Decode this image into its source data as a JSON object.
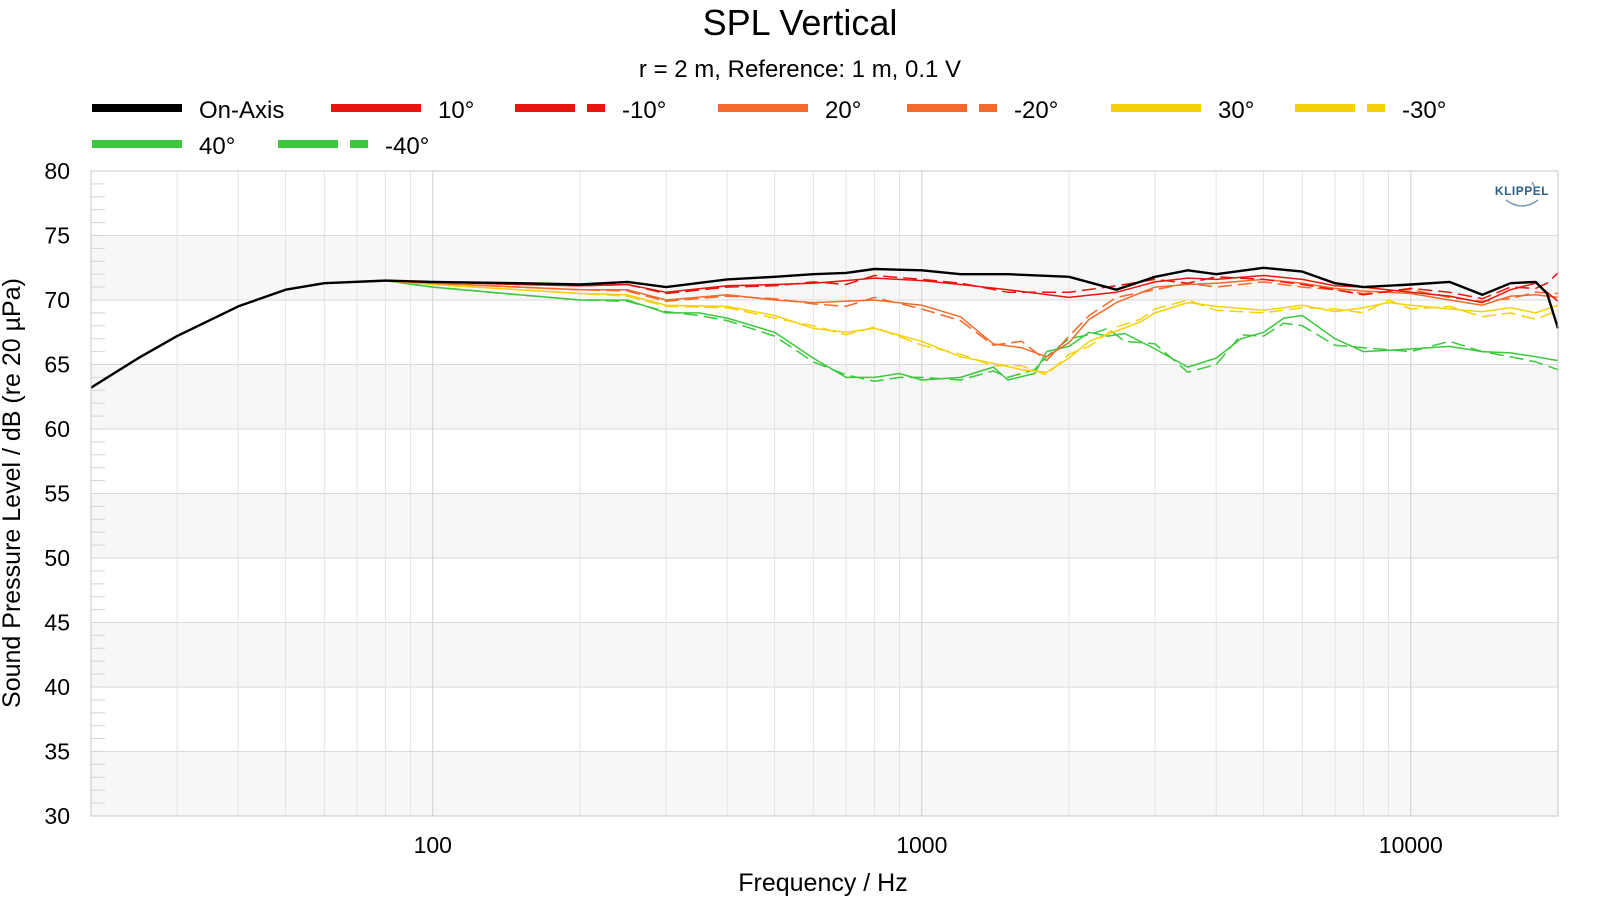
{
  "chart_data": {
    "type": "line",
    "title": "SPL Vertical",
    "subtitle": "r = 2 m,  Reference: 1 m, 0.1 V",
    "xlabel": "Frequency / Hz",
    "ylabel": "Sound Pressure Level / dB (re 20 µPa)",
    "xscale": "log",
    "xlim": [
      20,
      20000
    ],
    "xticks": [
      100,
      1000,
      10000
    ],
    "xtick_labels": [
      "100",
      "1000",
      "10000"
    ],
    "ylim": [
      30,
      80
    ],
    "yticks": [
      30,
      35,
      40,
      45,
      50,
      55,
      60,
      65,
      70,
      75,
      80
    ],
    "ytick_labels": [
      "30",
      "35",
      "40",
      "45",
      "50",
      "55",
      "60",
      "65",
      "70",
      "75",
      "80"
    ],
    "grid": true,
    "legend_position": "top",
    "logo": "KLIPPEL",
    "series": [
      {
        "name": "On-Axis",
        "color": "#000000",
        "dash": "solid",
        "x": [
          20,
          25,
          30,
          40,
          50,
          60,
          80,
          100,
          150,
          200,
          250,
          300,
          400,
          500,
          600,
          700,
          800,
          1000,
          1200,
          1500,
          2000,
          2500,
          3000,
          3500,
          4000,
          5000,
          6000,
          7000,
          8000,
          10000,
          12000,
          14000,
          16000,
          18000,
          19000,
          20000
        ],
        "y": [
          63.2,
          65.5,
          67.2,
          69.5,
          70.8,
          71.3,
          71.5,
          71.4,
          71.3,
          71.2,
          71.4,
          71.0,
          71.6,
          71.8,
          72.0,
          72.1,
          72.4,
          72.3,
          72.0,
          72.0,
          71.8,
          70.8,
          71.8,
          72.3,
          72.0,
          72.5,
          72.2,
          71.3,
          71.0,
          71.2,
          71.4,
          70.4,
          71.3,
          71.4,
          70.5,
          67.8
        ]
      },
      {
        "name": "10°",
        "color": "#e8150e",
        "dash": "solid",
        "x": [
          20,
          25,
          30,
          40,
          50,
          60,
          80,
          100,
          150,
          200,
          250,
          300,
          400,
          500,
          600,
          700,
          800,
          1000,
          1200,
          1500,
          2000,
          2500,
          3000,
          3500,
          4000,
          5000,
          6000,
          7000,
          8000,
          10000,
          12000,
          14000,
          16000,
          18000,
          19000,
          20000
        ],
        "y": [
          63.2,
          65.5,
          67.2,
          69.5,
          70.8,
          71.3,
          71.5,
          71.4,
          71.2,
          71.1,
          71.2,
          70.6,
          71.1,
          71.2,
          71.3,
          71.5,
          71.7,
          71.5,
          71.2,
          70.8,
          70.2,
          70.6,
          71.4,
          71.7,
          71.6,
          71.9,
          71.6,
          71.1,
          71.0,
          70.6,
          70.3,
          69.8,
          70.8,
          71.3,
          70.6,
          69.9
        ]
      },
      {
        "name": "-10°",
        "color": "#e8150e",
        "dash": "14,6",
        "x": [
          20,
          25,
          30,
          40,
          50,
          60,
          80,
          100,
          150,
          200,
          250,
          300,
          400,
          500,
          600,
          700,
          800,
          1000,
          1200,
          1500,
          2000,
          2500,
          3000,
          3500,
          4000,
          5000,
          6000,
          7000,
          8000,
          10000,
          12000,
          14000,
          16000,
          18000,
          19000,
          20000
        ],
        "y": [
          63.2,
          65.5,
          67.2,
          69.5,
          70.8,
          71.3,
          71.5,
          71.4,
          71.2,
          71.1,
          71.2,
          70.5,
          71.0,
          71.1,
          71.4,
          71.2,
          71.9,
          71.6,
          71.3,
          70.6,
          70.6,
          71.1,
          71.6,
          71.3,
          71.8,
          71.6,
          71.2,
          70.8,
          70.4,
          70.9,
          70.6,
          70.1,
          71.0,
          70.9,
          71.3,
          72.1
        ]
      },
      {
        "name": "20°",
        "color": "#f26b2a",
        "dash": "solid",
        "x": [
          20,
          25,
          30,
          40,
          50,
          60,
          80,
          100,
          150,
          200,
          250,
          300,
          400,
          500,
          600,
          700,
          800,
          1000,
          1200,
          1400,
          1600,
          1800,
          2000,
          2200,
          2500,
          3000,
          3500,
          4000,
          5000,
          6000,
          7000,
          8000,
          10000,
          12000,
          14000,
          16000,
          18000,
          20000
        ],
        "y": [
          63.2,
          65.5,
          67.2,
          69.5,
          70.8,
          71.3,
          71.5,
          71.3,
          71.0,
          70.8,
          70.8,
          70.0,
          70.4,
          70.0,
          69.8,
          69.9,
          70.0,
          69.6,
          68.7,
          66.6,
          66.3,
          65.6,
          66.7,
          68.5,
          69.8,
          71.0,
          71.2,
          71.3,
          71.6,
          71.3,
          70.9,
          70.7,
          70.5,
          70.0,
          69.6,
          70.3,
          70.4,
          70.2
        ]
      },
      {
        "name": "-20°",
        "color": "#f26b2a",
        "dash": "14,6",
        "x": [
          20,
          25,
          30,
          40,
          50,
          60,
          80,
          100,
          150,
          200,
          250,
          300,
          400,
          500,
          600,
          700,
          800,
          1000,
          1200,
          1400,
          1600,
          1800,
          2000,
          2200,
          2500,
          3000,
          3500,
          4000,
          5000,
          6000,
          7000,
          8000,
          10000,
          12000,
          14000,
          16000,
          18000,
          20000
        ],
        "y": [
          63.2,
          65.5,
          67.2,
          69.5,
          70.8,
          71.3,
          71.5,
          71.3,
          71.0,
          70.8,
          70.7,
          69.9,
          70.3,
          70.1,
          69.7,
          69.5,
          70.2,
          69.3,
          68.4,
          66.5,
          66.8,
          65.3,
          67.2,
          68.8,
          70.2,
          70.8,
          71.3,
          71.0,
          71.4,
          71.0,
          70.8,
          70.5,
          70.8,
          70.2,
          69.9,
          70.1,
          70.6,
          70.5
        ]
      },
      {
        "name": "30°",
        "color": "#f5d10a",
        "dash": "solid",
        "x": [
          20,
          25,
          30,
          40,
          50,
          60,
          80,
          100,
          150,
          200,
          250,
          300,
          400,
          500,
          600,
          700,
          800,
          1000,
          1200,
          1400,
          1600,
          1800,
          2000,
          2200,
          2500,
          2800,
          3000,
          3500,
          4000,
          5000,
          6000,
          7000,
          8000,
          9000,
          10000,
          12000,
          14000,
          16000,
          18000,
          20000
        ],
        "y": [
          63.2,
          65.5,
          67.2,
          69.5,
          70.8,
          71.3,
          71.5,
          71.2,
          70.8,
          70.5,
          70.4,
          69.6,
          69.5,
          68.8,
          67.8,
          67.5,
          67.8,
          66.8,
          65.6,
          65.1,
          64.6,
          64.4,
          65.5,
          66.8,
          67.6,
          68.3,
          69.0,
          69.8,
          69.5,
          69.2,
          69.6,
          69.1,
          69.4,
          69.8,
          69.6,
          69.3,
          69.1,
          69.4,
          69.0,
          69.6
        ]
      },
      {
        "name": "-30°",
        "color": "#f5d10a",
        "dash": "14,6",
        "x": [
          20,
          25,
          30,
          40,
          50,
          60,
          80,
          100,
          150,
          200,
          250,
          300,
          400,
          500,
          600,
          700,
          800,
          1000,
          1200,
          1400,
          1600,
          1800,
          2000,
          2200,
          2500,
          2800,
          3000,
          3500,
          4000,
          5000,
          6000,
          7000,
          8000,
          9000,
          10000,
          12000,
          14000,
          16000,
          18000,
          20000
        ],
        "y": [
          63.2,
          65.5,
          67.2,
          69.5,
          70.8,
          71.3,
          71.5,
          71.2,
          70.8,
          70.5,
          70.3,
          69.5,
          69.4,
          68.6,
          68.0,
          67.3,
          67.9,
          66.5,
          65.8,
          64.9,
          64.9,
          64.2,
          65.8,
          66.4,
          67.9,
          68.5,
          69.3,
          70.0,
          69.2,
          69.0,
          69.4,
          69.3,
          69.0,
          70.0,
          69.3,
          69.5,
          68.7,
          69.0,
          68.5,
          69.2
        ]
      },
      {
        "name": "40°",
        "color": "#3cc83c",
        "dash": "solid",
        "x": [
          20,
          25,
          30,
          40,
          50,
          60,
          80,
          100,
          150,
          200,
          250,
          300,
          350,
          400,
          500,
          600,
          700,
          800,
          900,
          1000,
          1200,
          1400,
          1500,
          1700,
          1800,
          2000,
          2200,
          2400,
          2600,
          3000,
          3500,
          4000,
          4500,
          5000,
          5500,
          6000,
          7000,
          8000,
          10000,
          12000,
          14000,
          16000,
          18000,
          20000
        ],
        "y": [
          63.2,
          65.5,
          67.2,
          69.5,
          70.8,
          71.3,
          71.5,
          71.0,
          70.4,
          70.0,
          70.0,
          69.0,
          69.0,
          68.6,
          67.5,
          65.5,
          64.0,
          64.0,
          64.3,
          63.8,
          64.0,
          64.8,
          63.8,
          64.3,
          66.0,
          66.4,
          67.5,
          67.2,
          67.4,
          66.2,
          64.8,
          65.5,
          67.0,
          67.5,
          68.6,
          68.8,
          67.0,
          66.0,
          66.2,
          66.4,
          66.0,
          65.9,
          65.6,
          65.3
        ]
      },
      {
        "name": "-40°",
        "color": "#3cc83c",
        "dash": "14,6",
        "x": [
          20,
          25,
          30,
          40,
          50,
          60,
          80,
          100,
          150,
          200,
          250,
          300,
          350,
          400,
          500,
          600,
          700,
          800,
          900,
          1000,
          1200,
          1400,
          1500,
          1700,
          1800,
          2000,
          2200,
          2400,
          2600,
          3000,
          3500,
          4000,
          4500,
          5000,
          5500,
          6000,
          7000,
          8000,
          10000,
          12000,
          14000,
          16000,
          18000,
          20000
        ],
        "y": [
          63.2,
          65.5,
          67.2,
          69.5,
          70.8,
          71.3,
          71.5,
          71.0,
          70.4,
          70.0,
          69.9,
          69.1,
          68.8,
          68.4,
          67.2,
          65.2,
          64.2,
          63.7,
          64.0,
          64.0,
          63.8,
          64.5,
          64.0,
          64.6,
          65.6,
          67.0,
          67.3,
          67.8,
          66.8,
          66.6,
          64.4,
          65.0,
          67.3,
          67.2,
          68.2,
          68.0,
          66.5,
          66.3,
          66.0,
          66.8,
          66.0,
          65.6,
          65.2,
          64.6
        ]
      }
    ]
  }
}
